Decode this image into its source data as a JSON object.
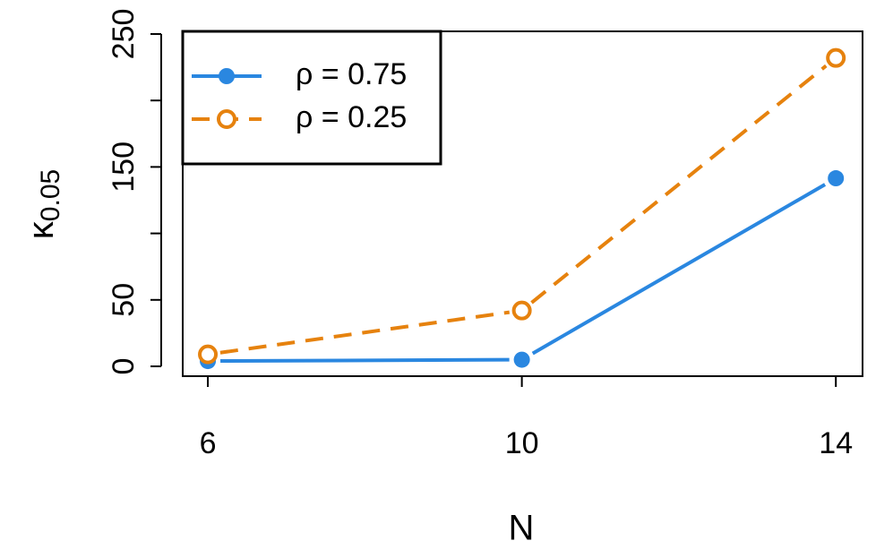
{
  "chart_data": {
    "type": "line",
    "x_label": "N",
    "y_label": "κ",
    "y_label_subscript": "0.05",
    "x": [
      6,
      10,
      14
    ],
    "series": [
      {
        "name": "ρ = 0.75",
        "color": "#2a87e0",
        "line": "solid",
        "marker": "filled",
        "values": [
          4,
          5,
          141.5
        ]
      },
      {
        "name": "ρ = 0.25",
        "color": "#e6820e",
        "line": "dashed",
        "marker": "open",
        "values": [
          9,
          42,
          232
        ]
      }
    ],
    "xlim": [
      5.68,
      14.34
    ],
    "xticks": [
      6,
      10,
      14
    ],
    "ylim": [
      -7.4,
      252
    ],
    "yticks": [
      0,
      50,
      {
        "value": 100,
        "label": null
      },
      150,
      {
        "value": 200,
        "label": null
      },
      250
    ],
    "legend": "top-left"
  }
}
